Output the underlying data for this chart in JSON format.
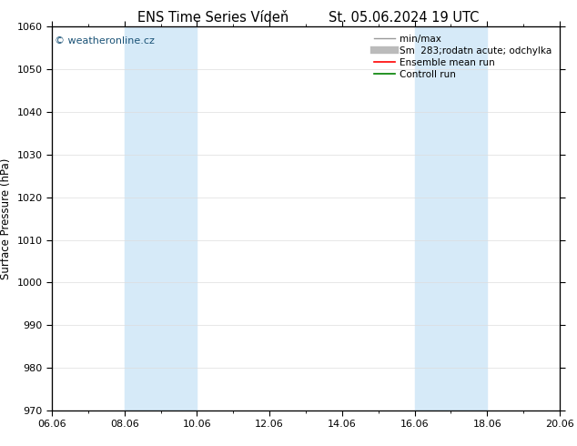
{
  "title": "ENS Time Series Vídeň",
  "title_right": "St. 05.06.2024 19 UTC",
  "ylabel": "Surface Pressure (hPa)",
  "ylim": [
    970,
    1060
  ],
  "yticks": [
    970,
    980,
    990,
    1000,
    1010,
    1020,
    1030,
    1040,
    1050,
    1060
  ],
  "xlim_start": 0,
  "xlim_end": 14,
  "xtick_labels": [
    "06.06",
    "08.06",
    "10.06",
    "12.06",
    "14.06",
    "16.06",
    "18.06",
    "20.06"
  ],
  "xtick_positions": [
    0,
    2,
    4,
    6,
    8,
    10,
    12,
    14
  ],
  "shaded_bands": [
    {
      "x_start": 2,
      "x_end": 4
    },
    {
      "x_start": 10,
      "x_end": 12
    }
  ],
  "shade_color": "#d6eaf8",
  "watermark_text": "© weatheronline.cz",
  "watermark_color": "#1a5276",
  "legend_entries": [
    {
      "label": "min/max",
      "color": "#999999",
      "lw": 1.0,
      "style": "-"
    },
    {
      "label": "Sm  283;rodatn acute; odchylka",
      "color": "#bbbbbb",
      "lw": 6,
      "style": "-"
    },
    {
      "label": "Ensemble mean run",
      "color": "red",
      "lw": 1.2,
      "style": "-"
    },
    {
      "label": "Controll run",
      "color": "green",
      "lw": 1.2,
      "style": "-"
    }
  ],
  "bg_color": "#ffffff",
  "grid_color": "#dddddd",
  "title_fontsize": 10.5,
  "tick_fontsize": 8,
  "ylabel_fontsize": 8.5,
  "legend_fontsize": 7.5
}
